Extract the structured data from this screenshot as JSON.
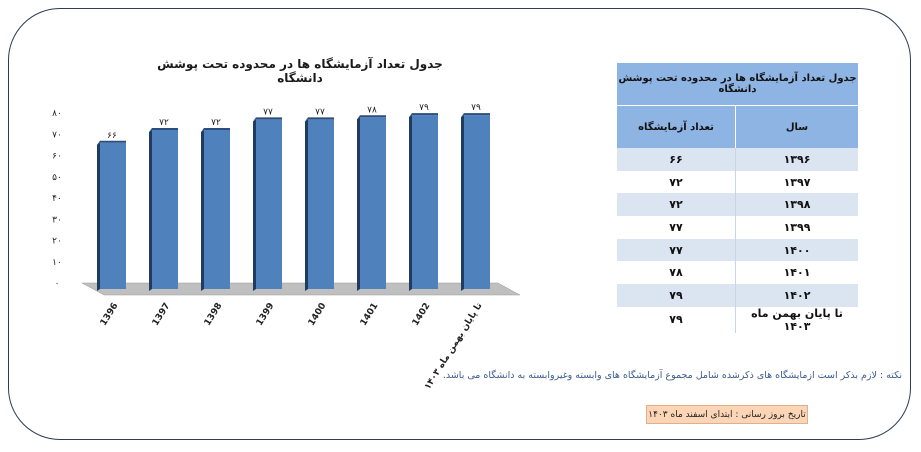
{
  "chart_data": {
    "type": "bar",
    "title": "جدول تعداد آزمایشگاه ها در محدوده  تحت پوشش دانشگاه",
    "categories": [
      "1396",
      "1397",
      "1398",
      "1399",
      "1400",
      "1401",
      "1402",
      "تا پایان بهمن ماه ۱۴۰۳"
    ],
    "values": [
      66,
      72,
      72,
      77,
      77,
      78,
      79,
      79
    ],
    "value_labels": [
      "۶۶",
      "۷۲",
      "۷۲",
      "۷۷",
      "۷۷",
      "۷۸",
      "۷۹",
      "۷۹"
    ],
    "yticks": [
      "۰",
      "۱۰",
      "۲۰",
      "۳۰",
      "۴۰",
      "۵۰",
      "۶۰",
      "۷۰",
      "۸۰"
    ],
    "ylim": [
      0,
      80
    ],
    "bar_color": "#4f81bd",
    "grid": false,
    "legend": false
  },
  "table": {
    "title": "جدول تعداد آزمایشگاه ها در محدوده تحت پوشش دانشگاه",
    "header_year": "سال",
    "header_count": "تعداد آزمایشگاه",
    "rows": [
      {
        "year": "۱۳۹۶",
        "count": "۶۶"
      },
      {
        "year": "۱۳۹۷",
        "count": "۷۲"
      },
      {
        "year": "۱۳۹۸",
        "count": "۷۲"
      },
      {
        "year": "۱۳۹۹",
        "count": "۷۷"
      },
      {
        "year": "۱۴۰۰",
        "count": "۷۷"
      },
      {
        "year": "۱۴۰۱",
        "count": "۷۸"
      },
      {
        "year": "۱۴۰۲",
        "count": "۷۹"
      },
      {
        "year": "تا پایان بهمن ماه ۱۴۰۳",
        "count": "۷۹"
      }
    ],
    "header_color": "#8eb4e3",
    "stripe_color": "#dbe5f1"
  },
  "note": "نکته : لازم بذکر است ازمایشگاه های ذکرشده شامل مجموع آزمایشگاه های وابسته وغیروابسته به دانشگاه می باشد.",
  "update": "تاریخ بروز رسانی : ابتدای اسفند ماه ۱۴۰۳",
  "colors": {
    "frame_border": "#2f3a56",
    "note_text": "#3a5c8f",
    "update_bg": "#fbd5b5"
  }
}
